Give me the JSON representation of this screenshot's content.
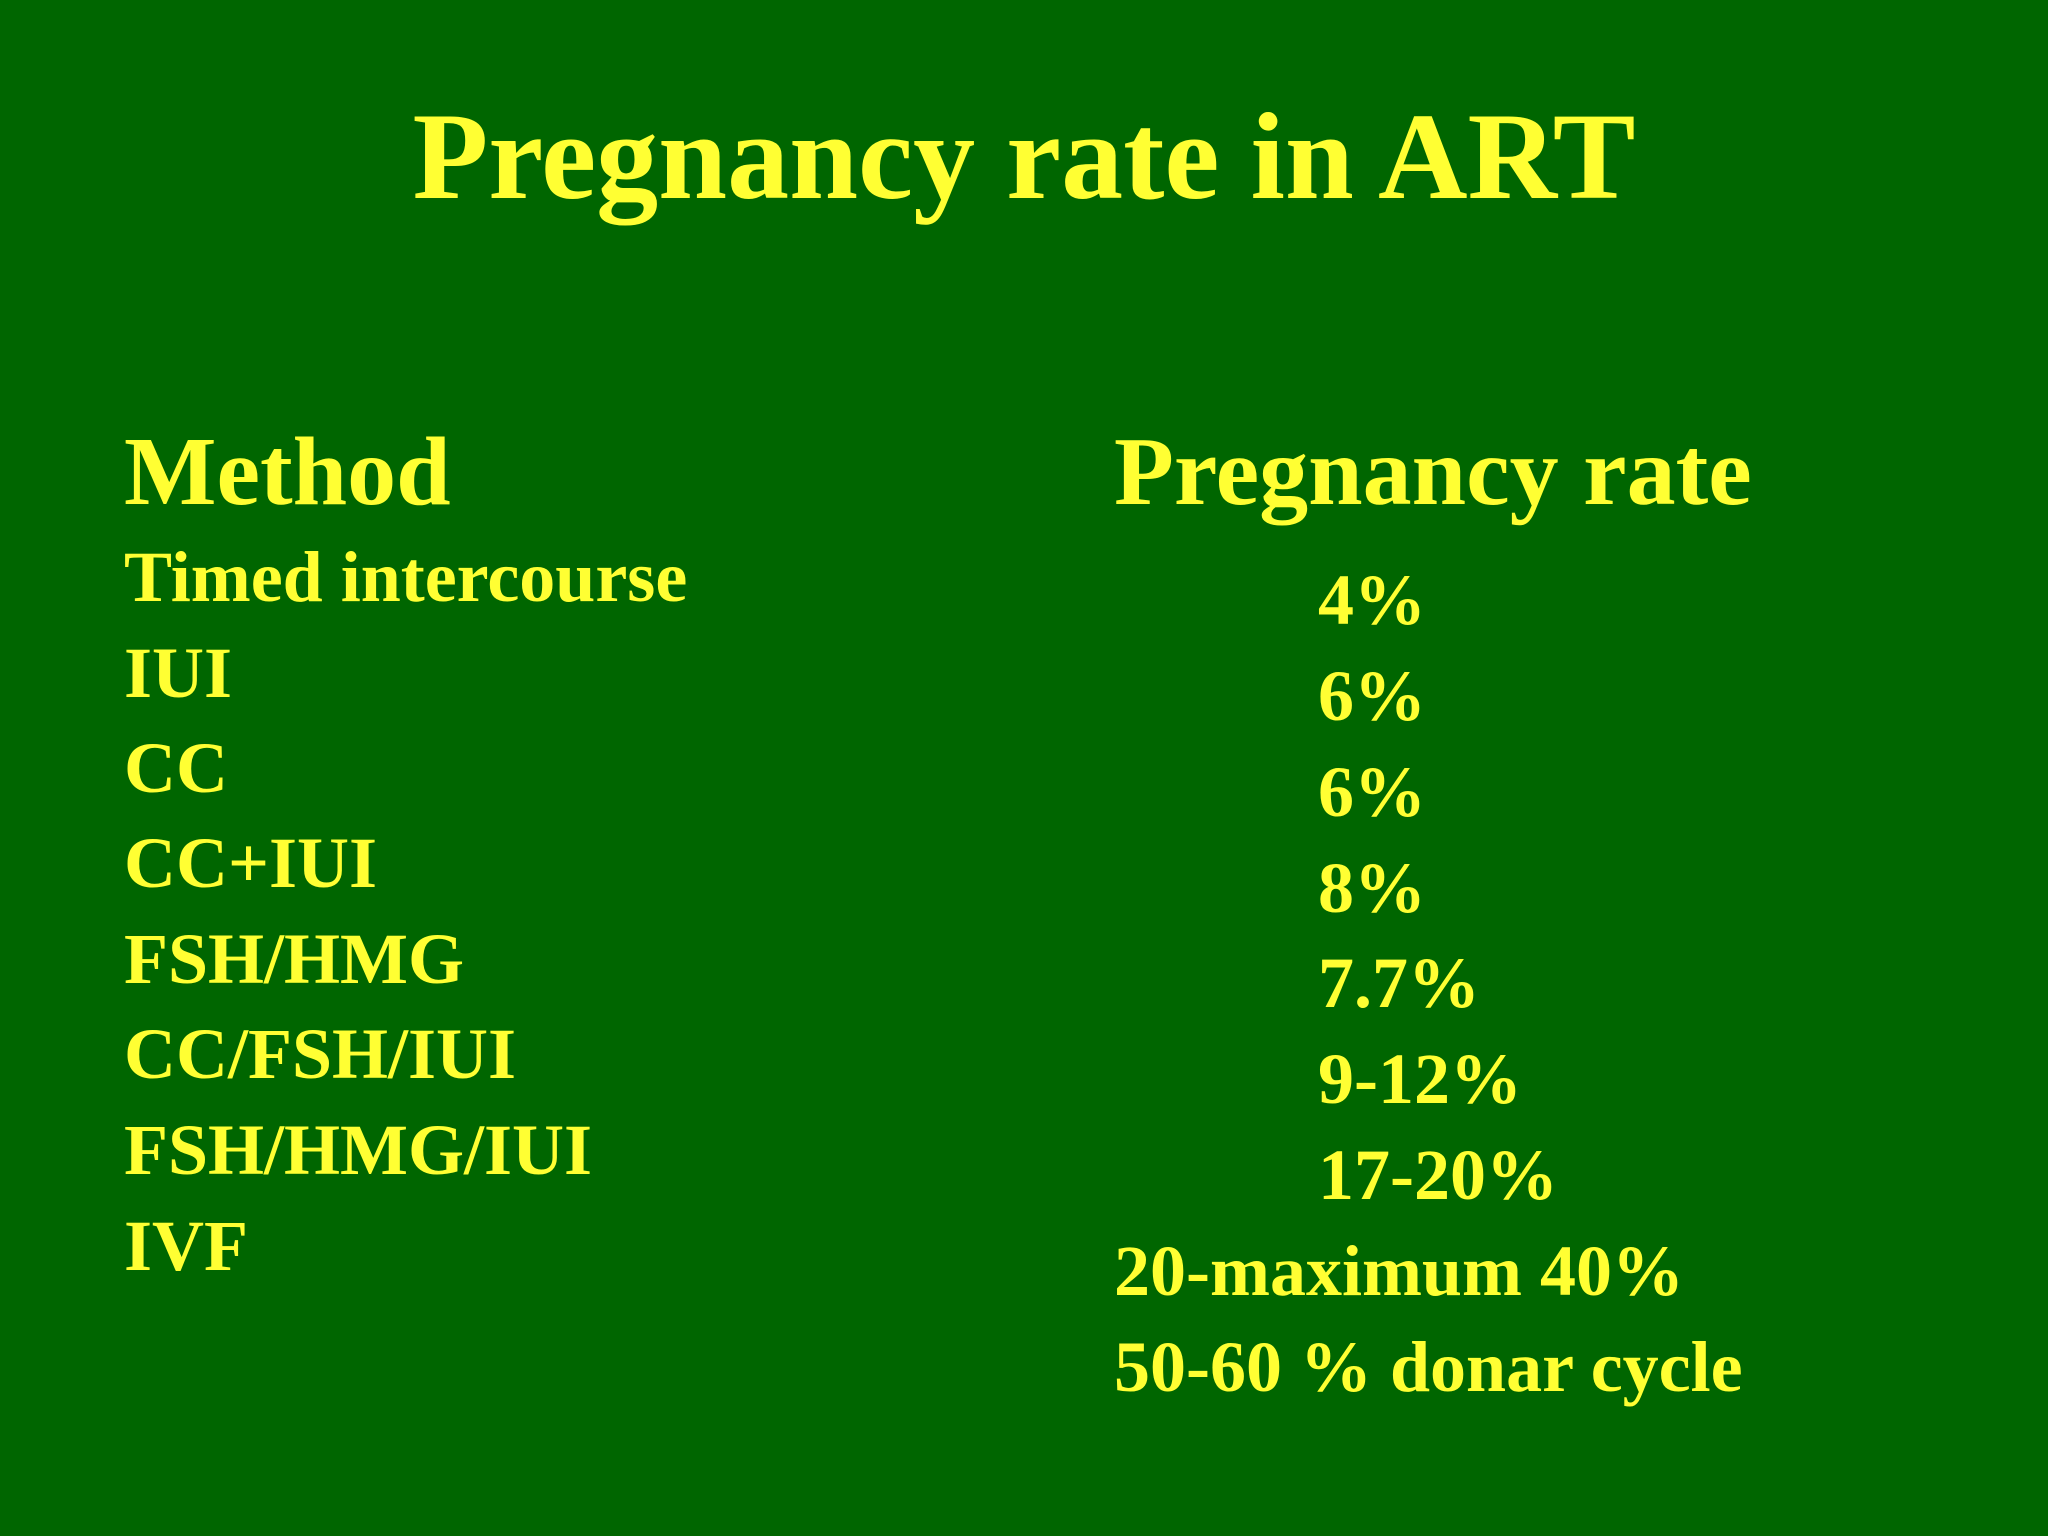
{
  "title": "Pregnancy rate in ART",
  "headers": {
    "method": "Method",
    "rate": "Pregnancy rate"
  },
  "methods": [
    "Timed intercourse",
    "IUI",
    "CC",
    "CC+IUI",
    "FSH/HMG",
    "CC/FSH/IUI",
    "FSH/HMG/IUI",
    "IVF"
  ],
  "rates": [
    "4%",
    "6%",
    "6%",
    "8%",
    "7.7%",
    "9-12%",
    "17-20%",
    "20-maximum 40%",
    "50-60 % donar cycle"
  ],
  "colors": {
    "background": "#006600",
    "text": "#ffff33"
  }
}
